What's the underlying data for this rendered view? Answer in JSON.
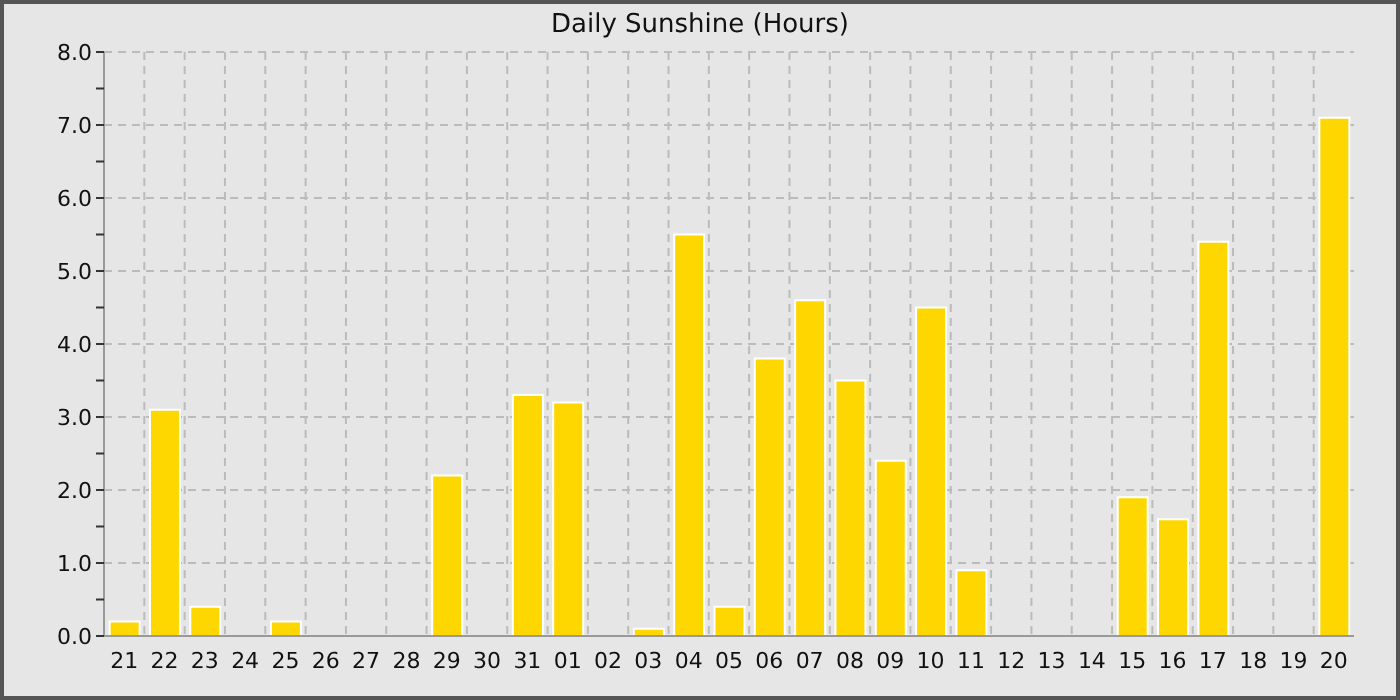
{
  "chart_data": {
    "type": "bar",
    "title": "Daily Sunshine (Hours)",
    "categories": [
      "21",
      "22",
      "23",
      "24",
      "25",
      "26",
      "27",
      "28",
      "29",
      "30",
      "31",
      "01",
      "02",
      "03",
      "04",
      "05",
      "06",
      "07",
      "08",
      "09",
      "10",
      "11",
      "12",
      "13",
      "14",
      "15",
      "16",
      "17",
      "18",
      "19",
      "20"
    ],
    "values": [
      0.2,
      3.1,
      0.4,
      0,
      0.2,
      0,
      0,
      0,
      2.2,
      0,
      3.3,
      3.2,
      0,
      0.1,
      5.5,
      0.4,
      3.8,
      4.6,
      3.5,
      2.4,
      4.5,
      0.9,
      0,
      0,
      0,
      1.9,
      1.6,
      5.4,
      0,
      0,
      7.1
    ],
    "color": "#ffd700",
    "ylim": [
      0,
      8
    ],
    "yticks": [
      {
        "value": 0,
        "label": "0.0"
      },
      {
        "value": 0.5,
        "label": null
      },
      {
        "value": 1,
        "label": "1.0"
      },
      {
        "value": 1.5,
        "label": null
      },
      {
        "value": 2,
        "label": "2.0"
      },
      {
        "value": 2.5,
        "label": null
      },
      {
        "value": 3,
        "label": "3.0"
      },
      {
        "value": 3.5,
        "label": null
      },
      {
        "value": 4,
        "label": "4.0"
      },
      {
        "value": 4.5,
        "label": null
      },
      {
        "value": 5,
        "label": "5.0"
      },
      {
        "value": 5.5,
        "label": null
      },
      {
        "value": 6,
        "label": "6.0"
      },
      {
        "value": 6.5,
        "label": null
      },
      {
        "value": 7,
        "label": "7.0"
      },
      {
        "value": 7.5,
        "label": null
      },
      {
        "value": 8,
        "label": "8.0"
      }
    ],
    "grid": true
  }
}
